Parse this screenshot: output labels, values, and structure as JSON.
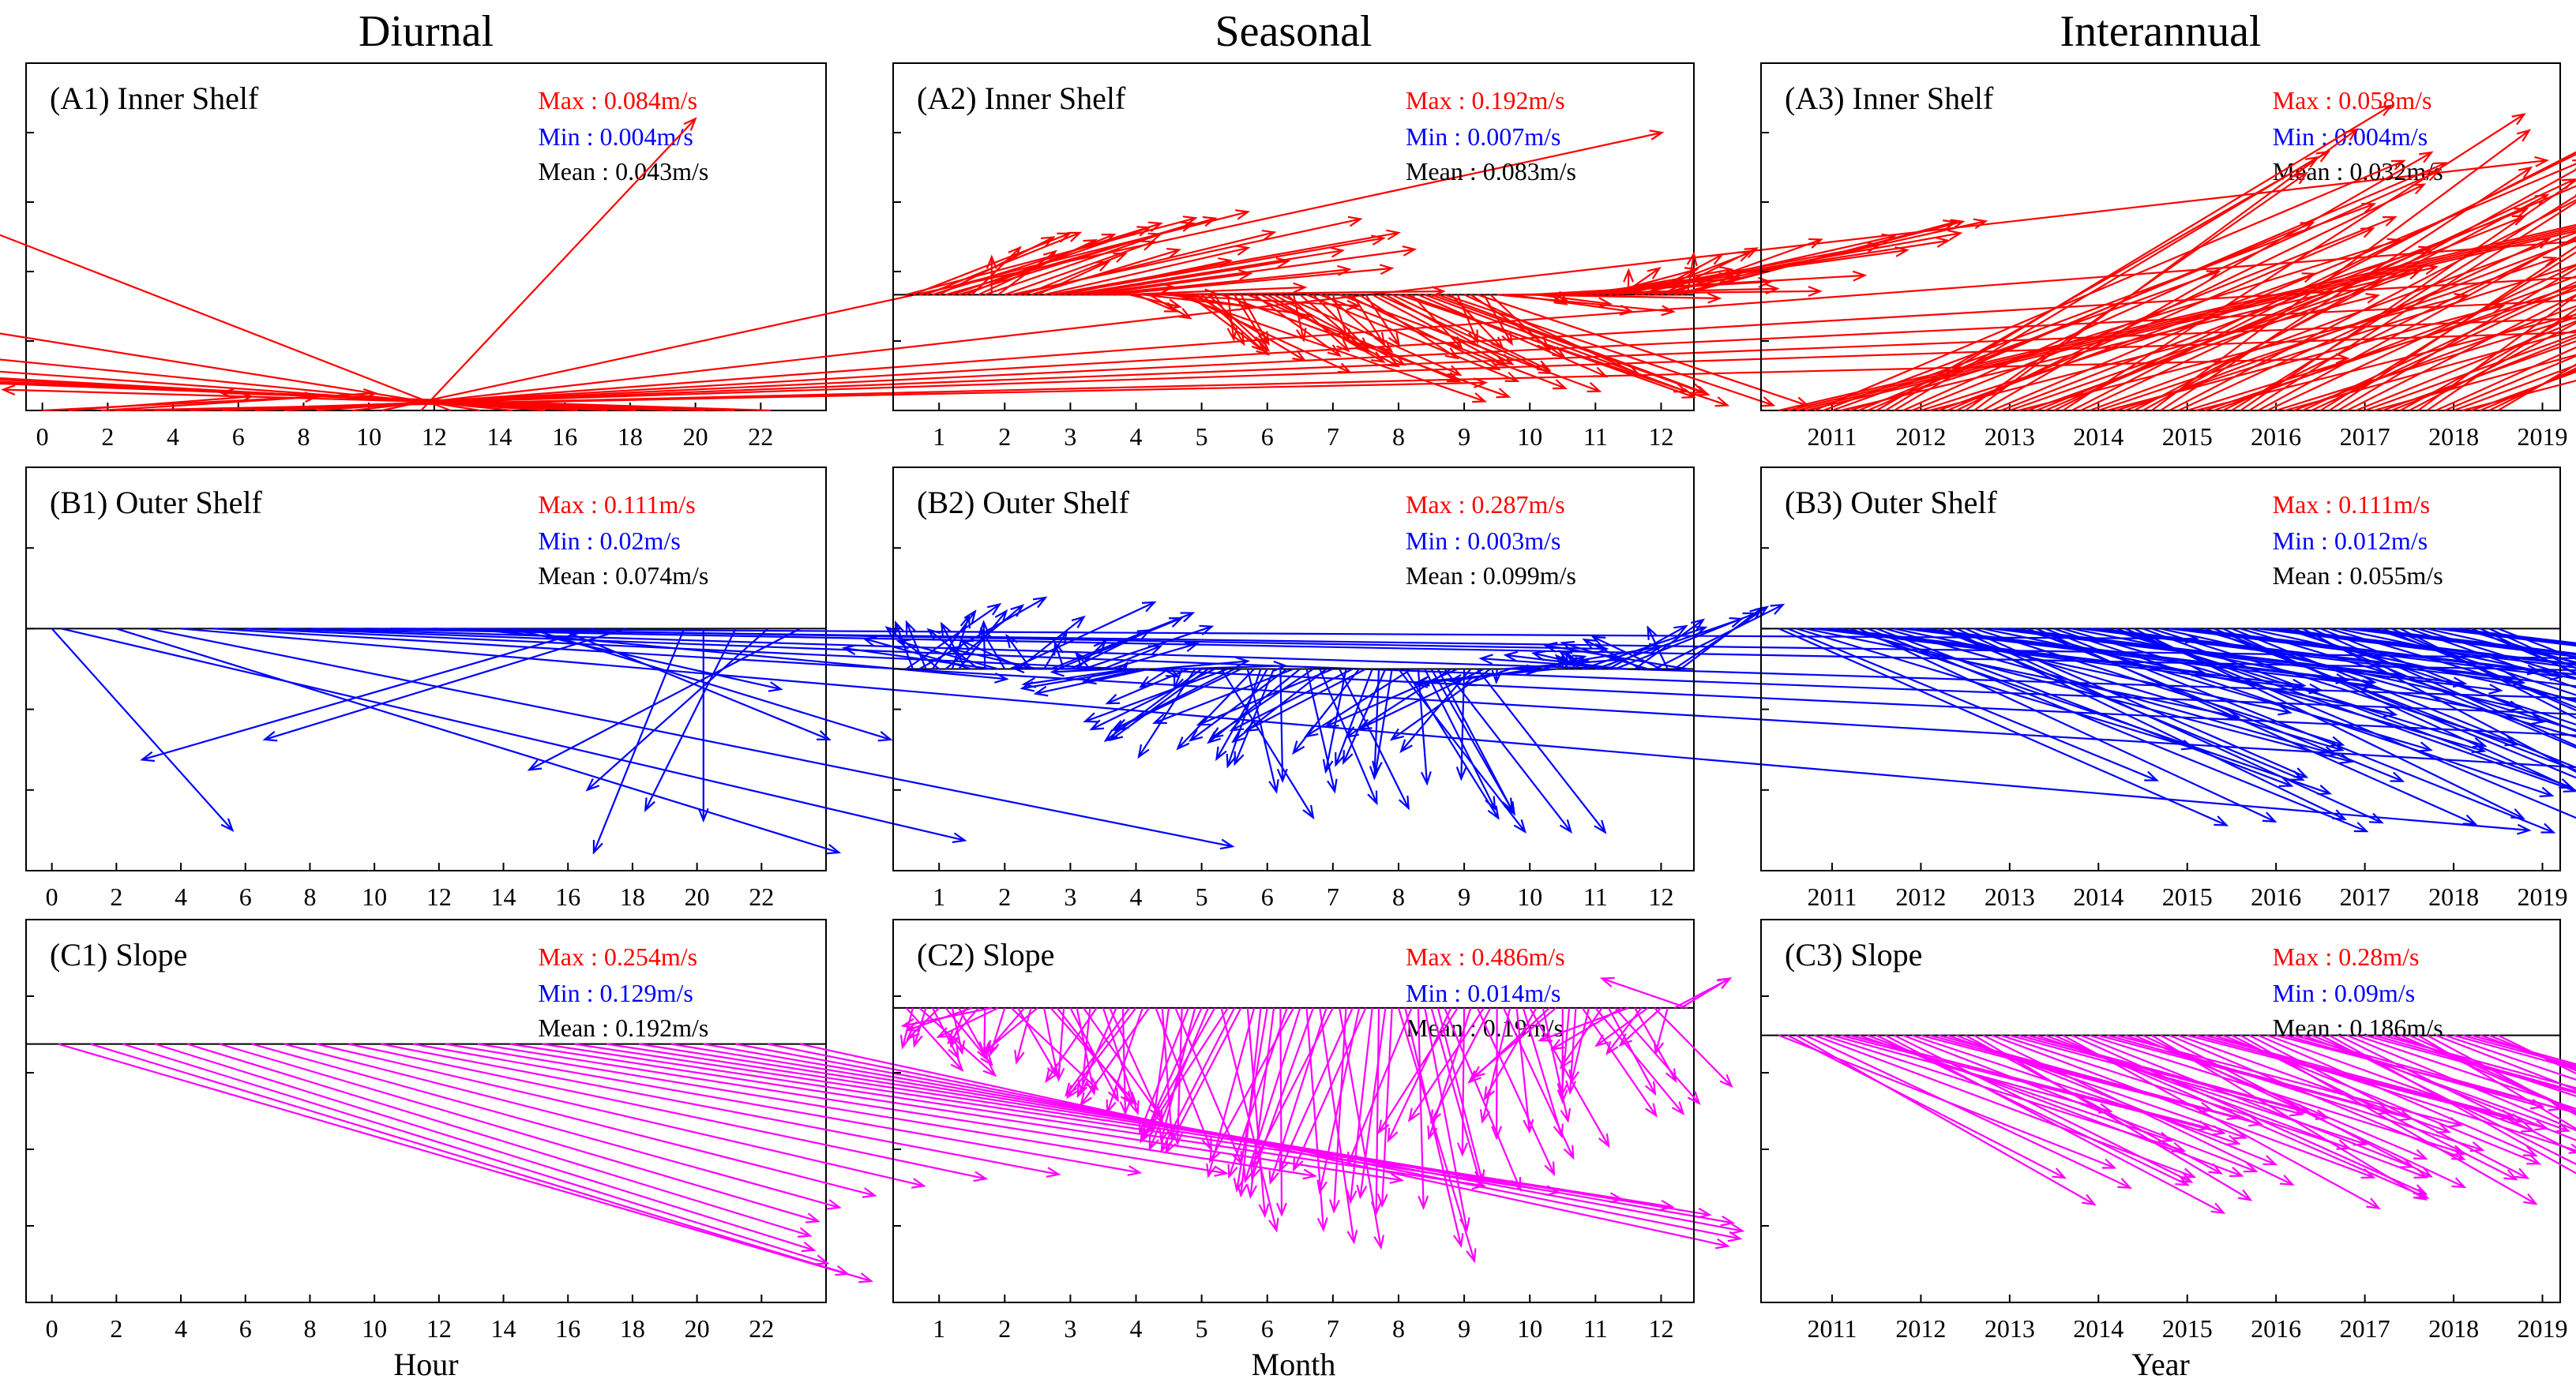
{
  "columns": [
    {
      "title": "Diurnal",
      "xlabel": "Hour",
      "xticks": [
        "0",
        "2",
        "4",
        "6",
        "8",
        "10",
        "12",
        "14",
        "16",
        "18",
        "20",
        "22"
      ]
    },
    {
      "title": "Seasonal",
      "xlabel": "Month",
      "xticks": [
        "1",
        "2",
        "3",
        "4",
        "5",
        "6",
        "7",
        "8",
        "9",
        "10",
        "11",
        "12"
      ]
    },
    {
      "title": "Interannual",
      "xlabel": "Year",
      "xticks": [
        "2011",
        "2012",
        "2013",
        "2014",
        "2015",
        "2016",
        "2017",
        "2018",
        "2019"
      ]
    }
  ],
  "colors": {
    "inner": "#ff0000",
    "outer": "#0000ff",
    "slope": "#ff00ff",
    "max": "#ff0000",
    "min": "#0000ff",
    "mean": "#000000",
    "axis": "#000000"
  },
  "chart_data": [
    {
      "type": "vector",
      "panel": "A1",
      "region": "Inner Shelf",
      "max": "Max : 0.084m/s",
      "min": "Min : 0.004m/s",
      "mean": "Mean : 0.043m/s",
      "xrange": [
        -0.5,
        24
      ],
      "ylim": [
        0,
        0.1
      ],
      "ticks_x": [
        0,
        2,
        4,
        6,
        8,
        10,
        12,
        14,
        16,
        18,
        20,
        22
      ],
      "vectors": [
        [
          0,
          0.0,
          0.3,
          0.004
        ],
        [
          1,
          0.8,
          0.2,
          0.004
        ],
        [
          2,
          1.8,
          0.3,
          0.005
        ],
        [
          3,
          2.2,
          1.5,
          0.008
        ],
        [
          4,
          3.4,
          2.4,
          0.015
        ],
        [
          5,
          4.5,
          2.9,
          0.025
        ],
        [
          6,
          5.5,
          3.4,
          0.035
        ],
        [
          7,
          6.5,
          3.6,
          0.045
        ],
        [
          8,
          7.4,
          3.6,
          0.055
        ],
        [
          9,
          8.4,
          3.3,
          0.065
        ],
        [
          10,
          9.5,
          2.4,
          0.072
        ],
        [
          11,
          10.4,
          1.4,
          0.08
        ],
        [
          12,
          11.6,
          0.3,
          0.084
        ],
        [
          13,
          12.5,
          -0.8,
          0.082
        ],
        [
          14,
          13.4,
          -1.8,
          0.076
        ],
        [
          15,
          14.4,
          -2.6,
          0.068
        ],
        [
          16,
          15.4,
          -3.2,
          0.06
        ],
        [
          17,
          16.4,
          -3.4,
          0.05
        ],
        [
          18,
          17.3,
          -3.0,
          0.04
        ],
        [
          19,
          18.2,
          -2.4,
          0.028
        ],
        [
          20,
          19.3,
          -1.6,
          0.018
        ],
        [
          21,
          20.3,
          -1.0,
          0.01
        ],
        [
          22,
          21.2,
          -0.8,
          0.006
        ],
        [
          23,
          22.3,
          -0.6,
          0.005
        ]
      ],
      "yref": 0
    },
    {
      "type": "vector",
      "panel": "A2",
      "region": "Inner Shelf",
      "max": "Max : 0.192m/s",
      "min": "Min : 0.007m/s",
      "mean": "Mean : 0.083m/s",
      "xrange": [
        0.3,
        12.5
      ],
      "ylim": [
        -0.08,
        0.16
      ],
      "ticks_x": [
        1,
        2,
        3,
        4,
        5,
        6,
        7,
        8,
        9,
        10,
        11,
        12
      ],
      "seasonal": "inner",
      "yref": 0
    },
    {
      "type": "vector",
      "panel": "A3",
      "region": "Inner Shelf",
      "max": "Max : 0.058m/s",
      "min": "Min : 0.004m/s",
      "mean": "Mean : 0.032m/s",
      "xrange": [
        2010.2,
        2019.2
      ],
      "ylim": [
        0,
        0.07
      ],
      "ticks_x": [
        2011,
        2012,
        2013,
        2014,
        2015,
        2016,
        2017,
        2018,
        2019
      ],
      "interannual": "inner",
      "yref": 0
    },
    {
      "type": "vector",
      "panel": "B1",
      "region": "Outer Shelf",
      "max": "Max : 0.111m/s",
      "min": "Min : 0.02m/s",
      "mean": "Mean : 0.074m/s",
      "xrange": [
        -0.8,
        24
      ],
      "ylim": [
        -0.12,
        0.08
      ],
      "ticks_x": [
        0,
        2,
        4,
        6,
        8,
        10,
        12,
        14,
        16,
        18,
        20,
        22
      ],
      "vectors": [
        [
          0,
          0.0,
          0.2,
          -0.1
        ],
        [
          1,
          0.3,
          1.0,
          -0.105
        ],
        [
          2,
          2.0,
          0.8,
          -0.111
        ],
        [
          3,
          3.0,
          1.2,
          -0.108
        ],
        [
          4,
          4.0,
          2.6,
          -0.1
        ],
        [
          5,
          5.0,
          3.5,
          -0.092
        ],
        [
          6,
          6.0,
          4.0,
          -0.082
        ],
        [
          7,
          7.0,
          4.2,
          -0.07
        ],
        [
          8,
          8.0,
          4.0,
          -0.055
        ],
        [
          9,
          9.0,
          3.6,
          -0.03
        ],
        [
          10,
          9.7,
          2.5,
          -0.015
        ],
        [
          11,
          10.5,
          2.0,
          -0.005
        ],
        [
          12,
          11.8,
          1.3,
          -0.01
        ],
        [
          13,
          12.8,
          0.6,
          -0.025
        ],
        [
          14,
          14.2,
          0.3,
          -0.03
        ],
        [
          15,
          14.8,
          0.4,
          -0.055
        ],
        [
          16,
          15.7,
          0.3,
          -0.055
        ],
        [
          17,
          16.8,
          -0.5,
          -0.065
        ],
        [
          18,
          17.8,
          -0.4,
          -0.055
        ],
        [
          19,
          19.6,
          -0.1,
          -0.111
        ],
        [
          20,
          20.2,
          0.0,
          -0.095
        ],
        [
          21,
          21.2,
          -0.1,
          -0.09
        ],
        [
          22,
          22.2,
          -0.2,
          -0.08
        ],
        [
          23,
          23.2,
          -0.3,
          -0.07
        ]
      ],
      "yref": 0
    },
    {
      "type": "vector",
      "panel": "B2",
      "region": "Outer Shelf",
      "max": "Max : 0.287m/s",
      "min": "Min : 0.003m/s",
      "mean": "Mean : 0.099m/s",
      "xrange": [
        0.3,
        12.5
      ],
      "ylim": [
        -0.2,
        0.2
      ],
      "ticks_x": [
        1,
        2,
        3,
        4,
        5,
        6,
        7,
        8,
        9,
        10,
        11,
        12
      ],
      "seasonal": "outer",
      "yref": 0
    },
    {
      "type": "vector",
      "panel": "B3",
      "region": "Outer Shelf",
      "max": "Max : 0.111m/s",
      "min": "Min : 0.012m/s",
      "mean": "Mean : 0.055m/s",
      "xrange": [
        2010.2,
        2019.2
      ],
      "ylim": [
        -0.12,
        0.08
      ],
      "ticks_x": [
        2011,
        2012,
        2013,
        2014,
        2015,
        2016,
        2017,
        2018,
        2019
      ],
      "interannual": "outer",
      "yref": 0
    },
    {
      "type": "vector",
      "panel": "C1",
      "region": "Slope",
      "max": "Max : 0.254m/s",
      "min": "Min : 0.129m/s",
      "mean": "Mean : 0.192m/s",
      "xrange": [
        -0.8,
        24
      ],
      "ylim": [
        -0.27,
        0.13
      ],
      "ticks_x": [
        0,
        2,
        4,
        6,
        8,
        10,
        12,
        14,
        16,
        18,
        20,
        22
      ],
      "diurnal": "slope",
      "yref": 0
    },
    {
      "type": "vector",
      "panel": "C2",
      "region": "Slope",
      "max": "Max : 0.486m/s",
      "min": "Min : 0.014m/s",
      "mean": "Mean : 0.19m/s",
      "xrange": [
        0.3,
        12.5
      ],
      "ylim": [
        -0.5,
        0.15
      ],
      "ticks_x": [
        1,
        2,
        3,
        4,
        5,
        6,
        7,
        8,
        9,
        10,
        11,
        12
      ],
      "seasonal": "slope",
      "yref": 0
    },
    {
      "type": "vector",
      "panel": "C3",
      "region": "Slope",
      "max": "Max : 0.28m/s",
      "min": "Min : 0.09m/s",
      "mean": "Mean : 0.186m/s",
      "xrange": [
        2010.2,
        2019.2
      ],
      "ylim": [
        -0.3,
        0.13
      ],
      "ticks_x": [
        2011,
        2012,
        2013,
        2014,
        2015,
        2016,
        2017,
        2018,
        2019
      ],
      "interannual": "slope",
      "yref": 0
    }
  ]
}
